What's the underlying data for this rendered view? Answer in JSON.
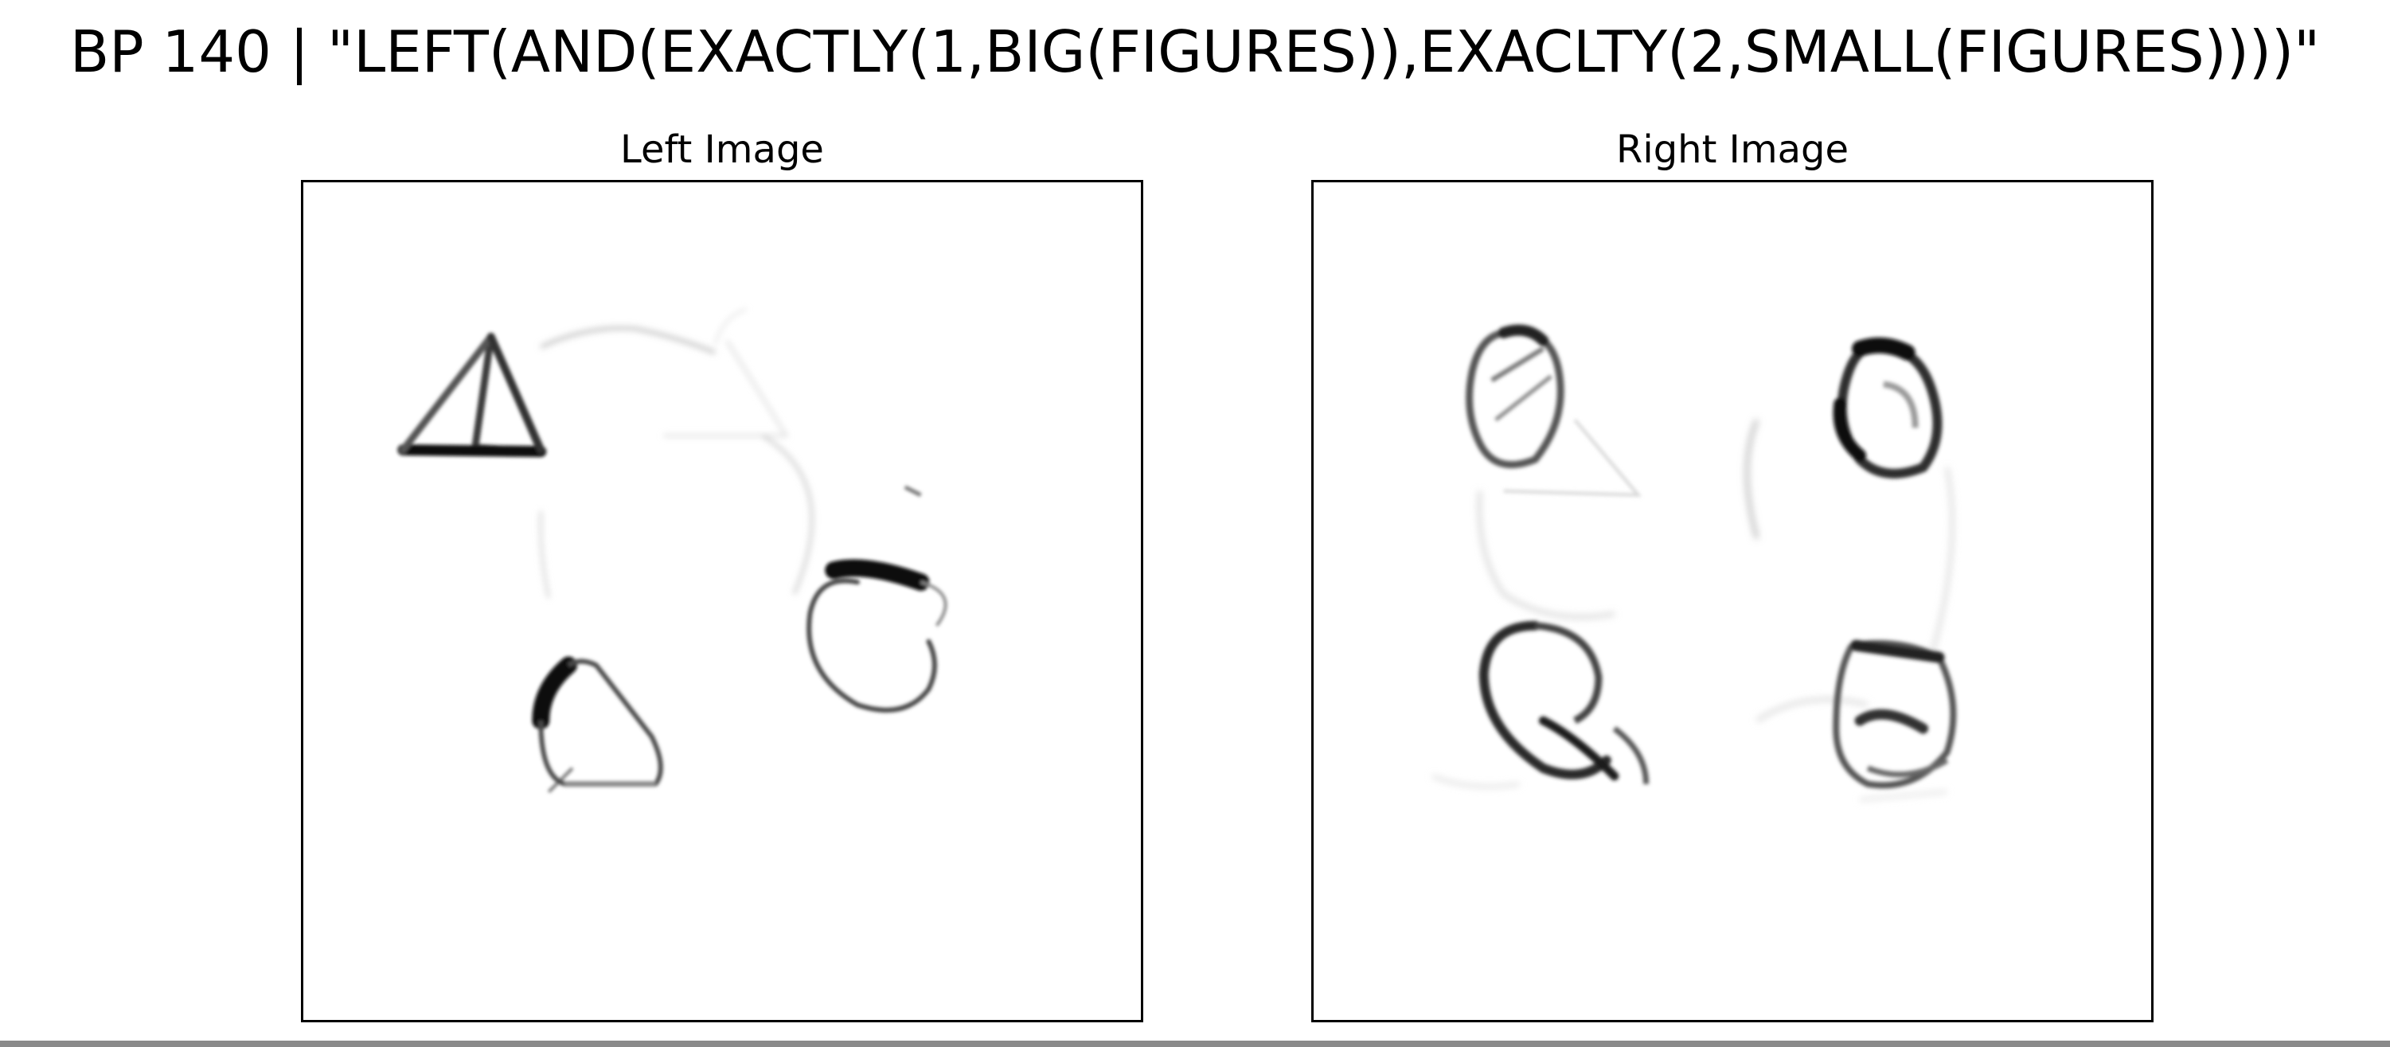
{
  "figure": {
    "title": "BP 140 | \"LEFT(AND(EXACTLY(1,BIG(FIGURES)),EXACLTY(2,SMALL(FIGURES))))\""
  },
  "panels": {
    "left": {
      "title": "Left Image"
    },
    "right": {
      "title": "Right Image"
    }
  },
  "colors": {
    "background": "#ffffff",
    "ink": "#000000",
    "frame": "#000000",
    "strip": "#8a8a8a"
  }
}
